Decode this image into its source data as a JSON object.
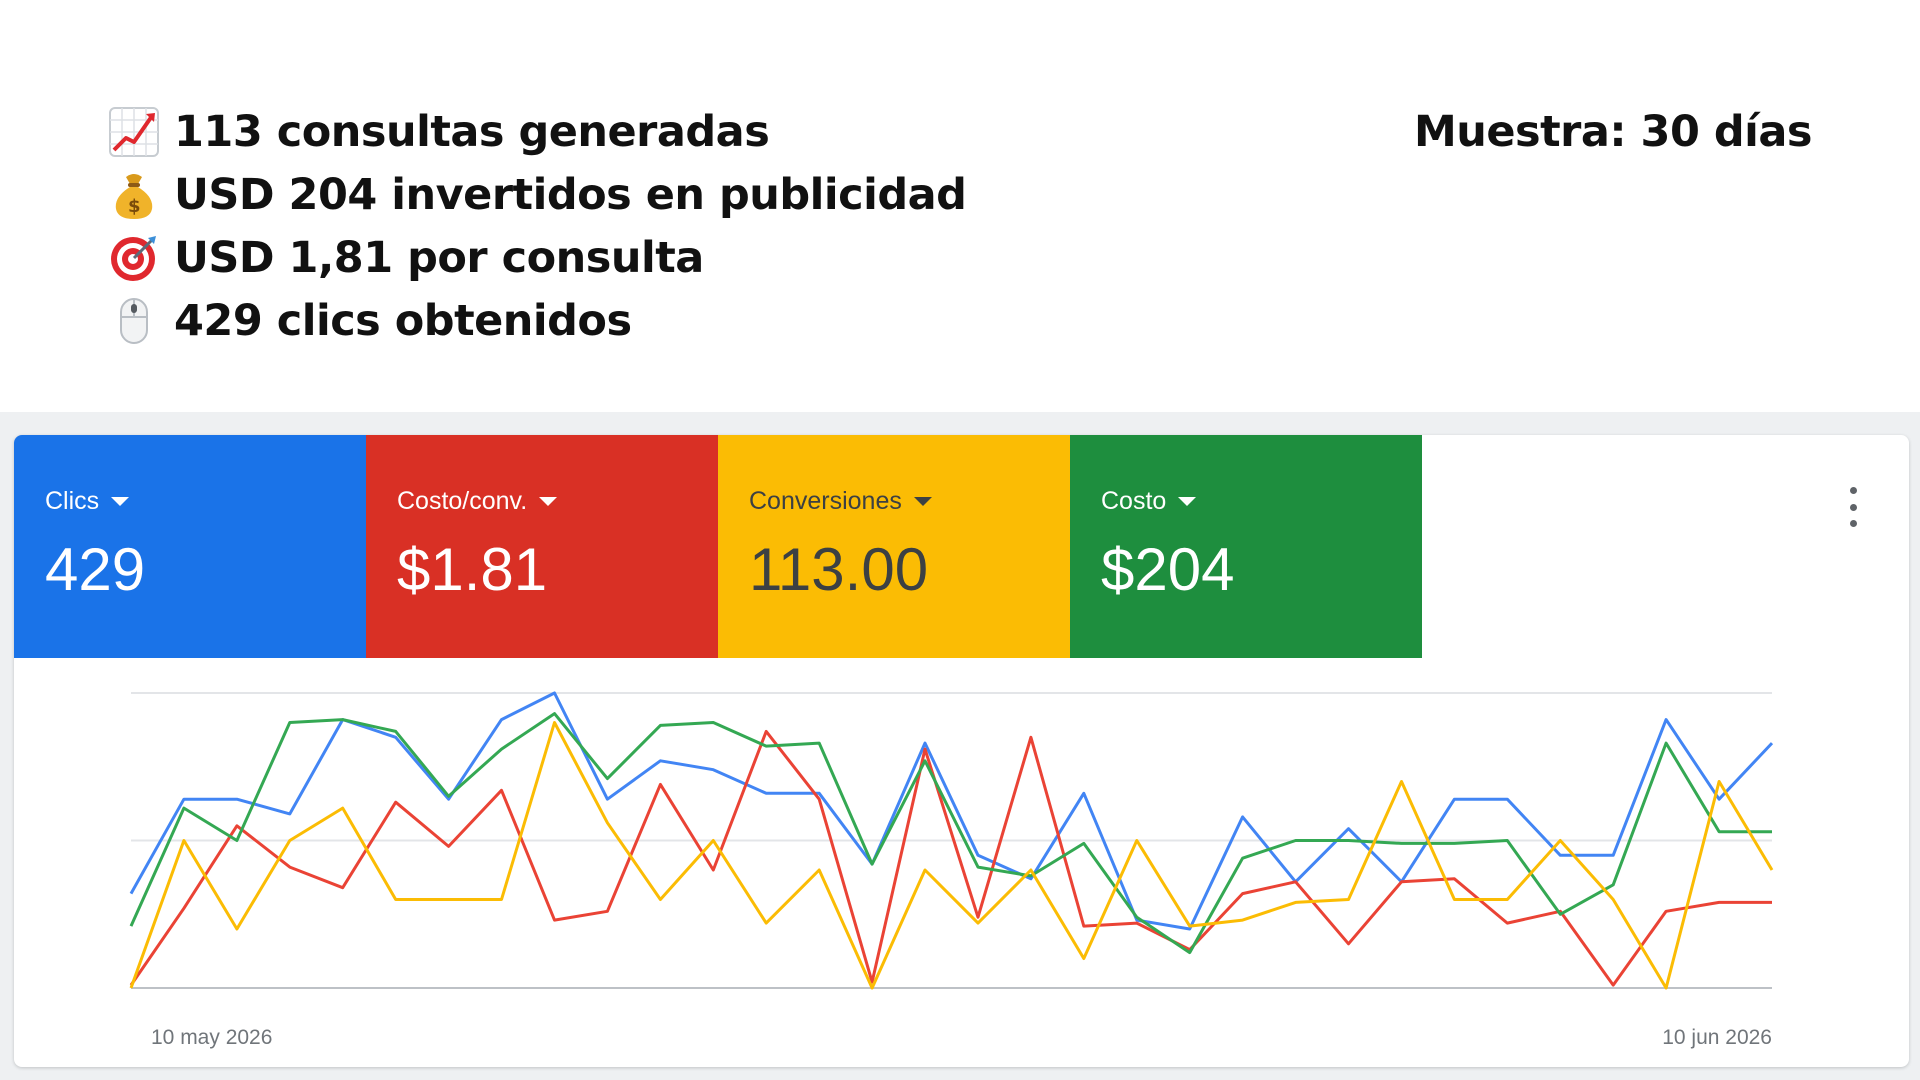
{
  "summary": {
    "lines": [
      {
        "icon": "chart-increasing-emoji",
        "text": "113 consultas generadas"
      },
      {
        "icon": "money-bag-emoji",
        "text": "USD 204 invertidos en publicidad"
      },
      {
        "icon": "direct-hit-target-emoji",
        "text": "USD 1,81 por consulta"
      },
      {
        "icon": "computer-mouse-emoji",
        "text": "429 clics obtenidos"
      }
    ],
    "sample": "Muestra: 30 días"
  },
  "tiles": [
    {
      "label": "Clics",
      "value": "429",
      "color": "#1a73e8",
      "text_color": "#ffffff"
    },
    {
      "label": "Costo/conv.",
      "value": "$1.81",
      "color": "#d93025",
      "text_color": "#ffffff"
    },
    {
      "label": "Conversiones",
      "value": "113.00",
      "color": "#fbbc04",
      "text_color": "#3c4043"
    },
    {
      "label": "Costo",
      "value": "$204",
      "color": "#1e8e3e",
      "text_color": "#ffffff"
    }
  ],
  "menu_icon": "more-vert-icon",
  "chart_data": {
    "type": "line",
    "x_labels": {
      "start": "10 may 2026",
      "end": "10 jun 2026"
    },
    "ylim": [
      0,
      10
    ],
    "grid": true,
    "series": [
      {
        "color": "#4285f4",
        "values": [
          3.2,
          6.4,
          6.4,
          5.9,
          9.1,
          8.5,
          6.4,
          9.1,
          10,
          6.4,
          7.7,
          7.4,
          6.6,
          6.6,
          4.2,
          8.3,
          4.5,
          3.7,
          6.6,
          2.3,
          2.0,
          5.8,
          3.6,
          5.4,
          3.6,
          6.4,
          6.4,
          4.5,
          4.5,
          9.1,
          6.4,
          8.3
        ]
      },
      {
        "color": "#ea4335",
        "values": [
          0.1,
          2.7,
          5.5,
          4.1,
          3.4,
          6.3,
          4.8,
          6.7,
          2.3,
          2.6,
          6.9,
          4.0,
          8.7,
          6.4,
          0.2,
          8.1,
          2.4,
          8.5,
          2.1,
          2.2,
          1.3,
          3.2,
          3.6,
          1.5,
          3.6,
          3.7,
          2.2,
          2.6,
          0.1,
          2.6,
          2.9,
          2.9
        ]
      },
      {
        "color": "#34a853",
        "values": [
          2.1,
          6.1,
          5.0,
          9.0,
          9.1,
          8.7,
          6.5,
          8.1,
          9.3,
          7.1,
          8.9,
          9.0,
          8.2,
          8.3,
          4.2,
          7.7,
          4.1,
          3.8,
          4.9,
          2.4,
          1.2,
          4.4,
          5.0,
          5.0,
          4.9,
          4.9,
          5.0,
          2.5,
          3.5,
          8.3,
          5.3,
          5.3
        ]
      },
      {
        "color": "#fbbc04",
        "values": [
          0,
          5.0,
          2.0,
          5.0,
          6.1,
          3.0,
          3.0,
          3.0,
          9.0,
          5.6,
          3.0,
          5.0,
          2.2,
          4.0,
          0,
          4.0,
          2.2,
          4.0,
          1.0,
          5.0,
          2.1,
          2.3,
          2.9,
          3.0,
          7.0,
          3.0,
          3.0,
          5.0,
          3.0,
          0,
          7.0,
          4.0
        ]
      }
    ]
  }
}
